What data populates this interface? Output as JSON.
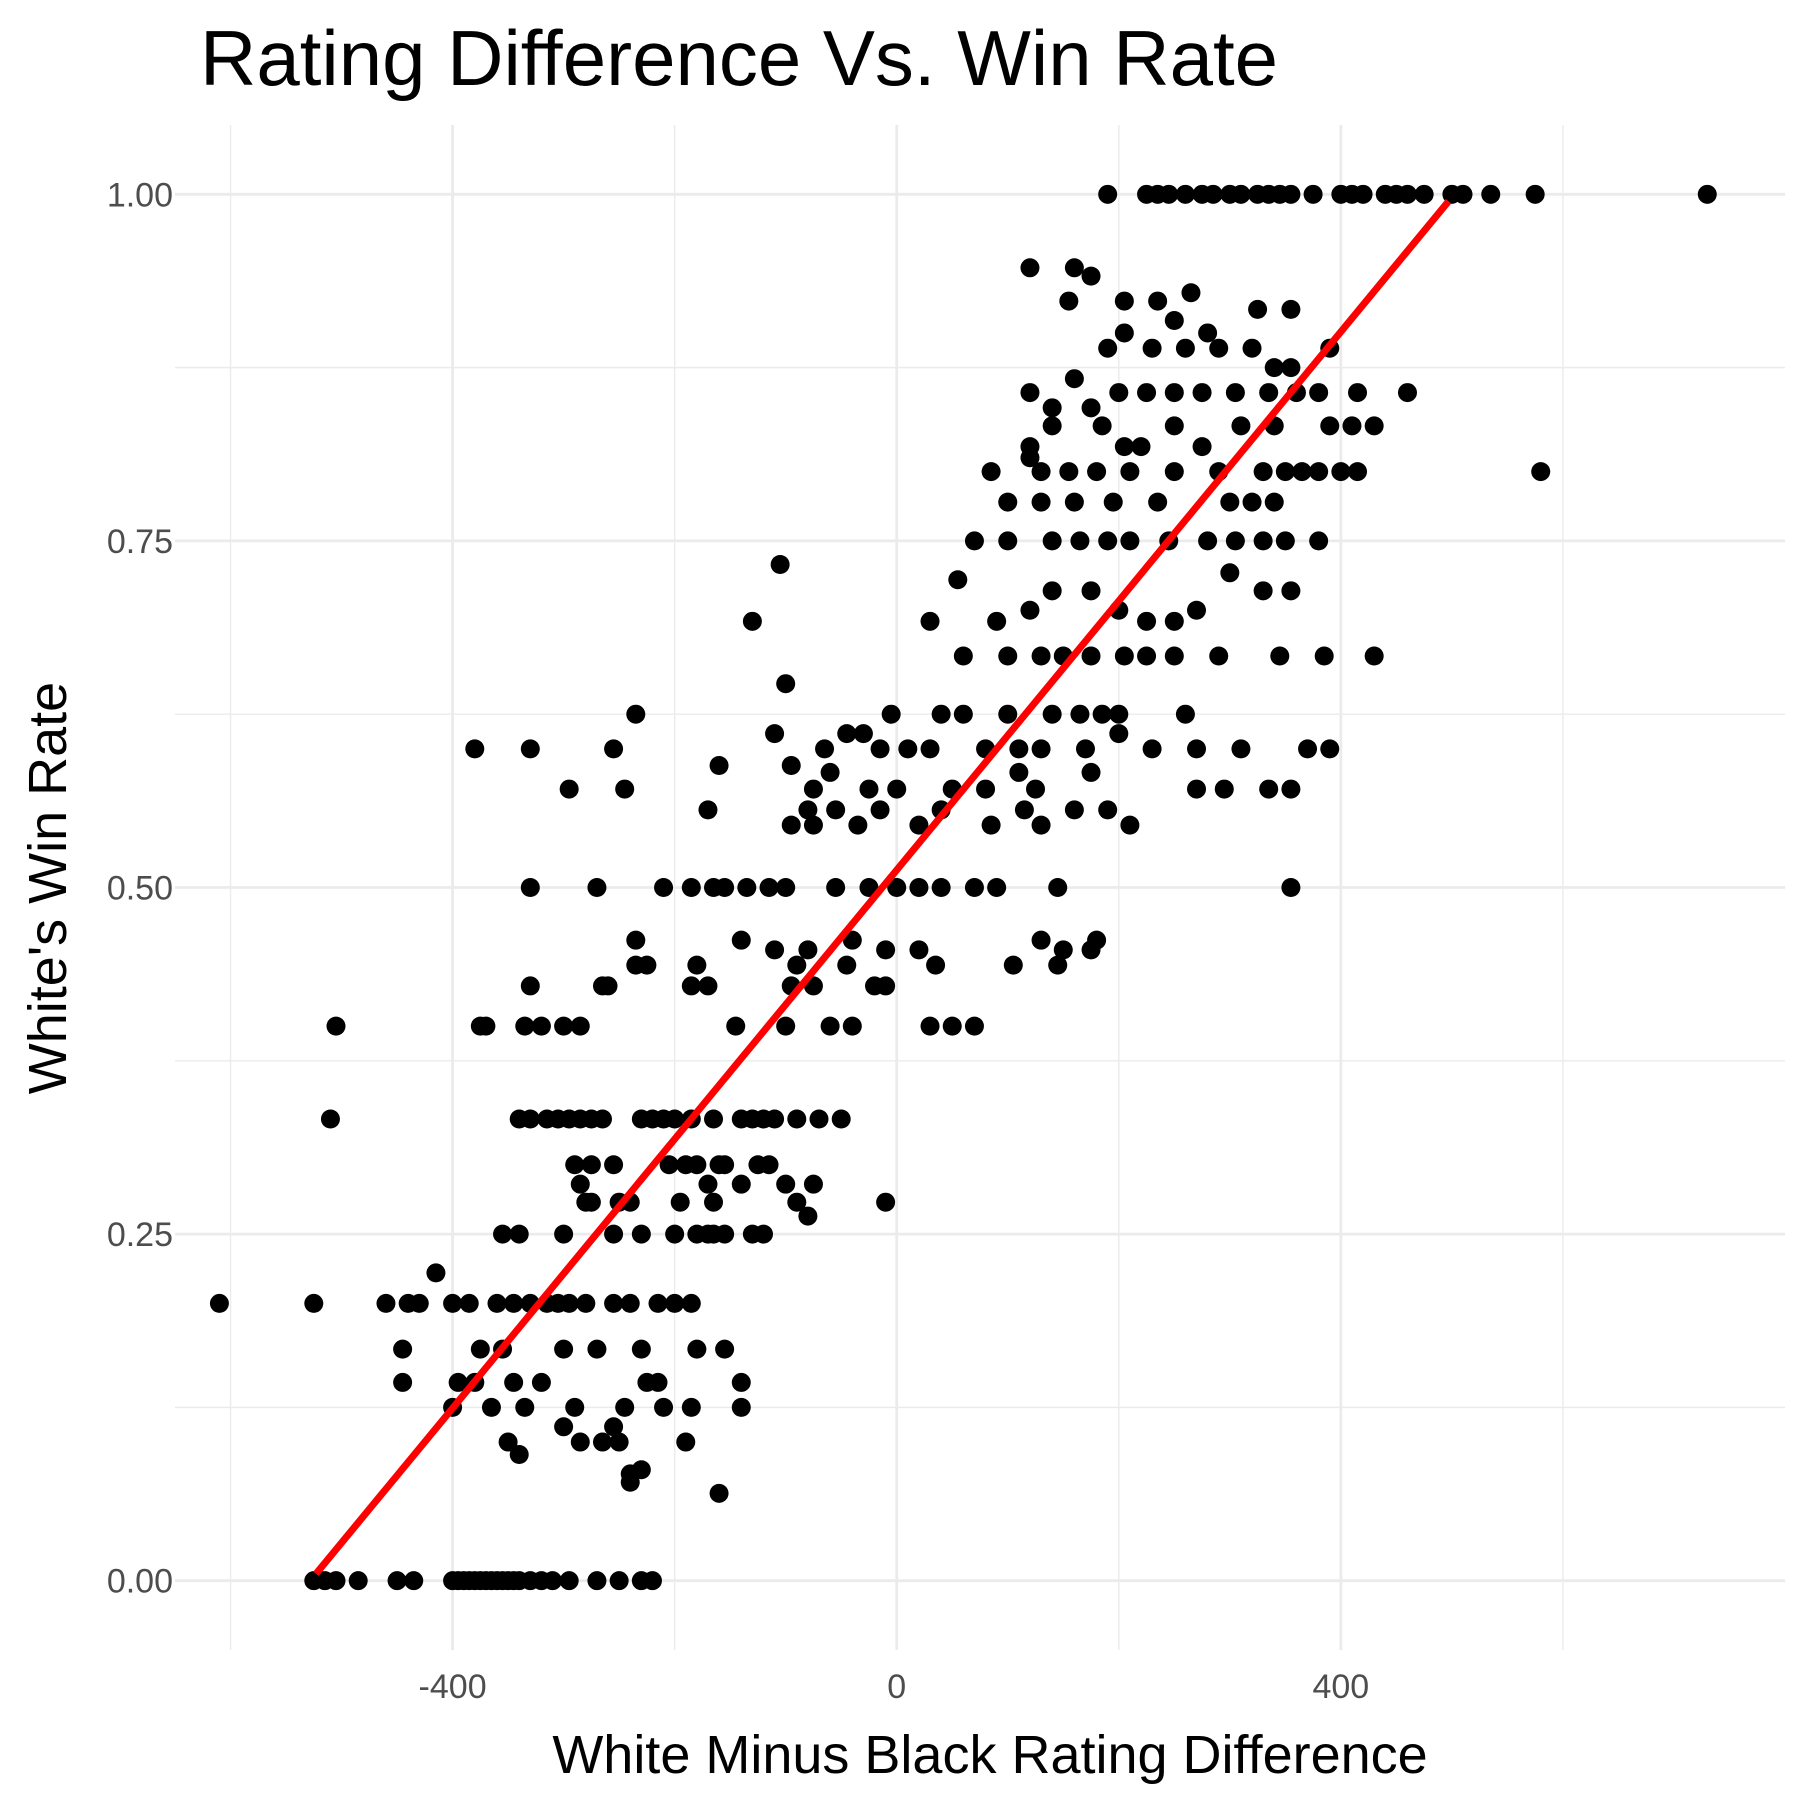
{
  "chart_data": {
    "type": "scatter",
    "title": "Rating Difference Vs. Win Rate",
    "xlabel": "White Minus Black Rating Difference",
    "ylabel": "White's Win Rate",
    "xlim": [
      -650,
      800
    ],
    "ylim": [
      -0.05,
      1.05
    ],
    "x_ticks": [
      -400,
      0,
      400
    ],
    "x_tick_labels": [
      "-400",
      "0",
      "400"
    ],
    "x_minor_ticks": [
      -600,
      -200,
      200,
      600
    ],
    "y_ticks": [
      0,
      0.25,
      0.5,
      0.75,
      1
    ],
    "y_tick_labels": [
      "0.00",
      "0.25",
      "0.50",
      "0.75",
      "1.00"
    ],
    "y_minor_ticks": [
      0.125,
      0.375,
      0.625,
      0.875
    ],
    "grid": true,
    "point_color": "#000000",
    "fit_line": {
      "color": "#ff0000",
      "x": [
        -523,
        497
      ],
      "y": [
        0.005,
        0.995
      ]
    },
    "points": [
      [
        -610,
        0.2
      ],
      [
        -525,
        0.2
      ],
      [
        -505,
        0.4
      ],
      [
        -510,
        0.333
      ],
      [
        -525,
        0
      ],
      [
        -515,
        0
      ],
      [
        -505,
        0
      ],
      [
        -485,
        0
      ],
      [
        -450,
        0
      ],
      [
        -435,
        0
      ],
      [
        -400,
        0
      ],
      [
        -395,
        0
      ],
      [
        -390,
        0
      ],
      [
        -385,
        0
      ],
      [
        -380,
        0
      ],
      [
        -375,
        0
      ],
      [
        -370,
        0
      ],
      [
        -365,
        0
      ],
      [
        -360,
        0
      ],
      [
        -355,
        0
      ],
      [
        -350,
        0
      ],
      [
        -345,
        0
      ],
      [
        -340,
        0
      ],
      [
        -330,
        0
      ],
      [
        -320,
        0
      ],
      [
        -310,
        0
      ],
      [
        -295,
        0
      ],
      [
        -270,
        0
      ],
      [
        -250,
        0
      ],
      [
        -230,
        0
      ],
      [
        -220,
        0
      ],
      [
        -460,
        0.2
      ],
      [
        -440,
        0.2
      ],
      [
        -430,
        0.2
      ],
      [
        -415,
        0.222
      ],
      [
        -400,
        0.2
      ],
      [
        -385,
        0.2
      ],
      [
        -360,
        0.2
      ],
      [
        -345,
        0.2
      ],
      [
        -330,
        0.2
      ],
      [
        -315,
        0.2
      ],
      [
        -305,
        0.2
      ],
      [
        -295,
        0.2
      ],
      [
        -280,
        0.2
      ],
      [
        -255,
        0.2
      ],
      [
        -240,
        0.2
      ],
      [
        -215,
        0.2
      ],
      [
        -200,
        0.2
      ],
      [
        -185,
        0.2
      ],
      [
        -445,
        0.167
      ],
      [
        -375,
        0.167
      ],
      [
        -355,
        0.167
      ],
      [
        -300,
        0.167
      ],
      [
        -270,
        0.167
      ],
      [
        -230,
        0.167
      ],
      [
        -180,
        0.167
      ],
      [
        -155,
        0.167
      ],
      [
        -445,
        0.143
      ],
      [
        -395,
        0.143
      ],
      [
        -380,
        0.143
      ],
      [
        -345,
        0.143
      ],
      [
        -320,
        0.143
      ],
      [
        -225,
        0.143
      ],
      [
        -215,
        0.143
      ],
      [
        -140,
        0.143
      ],
      [
        -400,
        0.125
      ],
      [
        -365,
        0.125
      ],
      [
        -335,
        0.125
      ],
      [
        -290,
        0.125
      ],
      [
        -245,
        0.125
      ],
      [
        -210,
        0.125
      ],
      [
        -185,
        0.125
      ],
      [
        -140,
        0.125
      ],
      [
        -350,
        0.1
      ],
      [
        -340,
        0.091
      ],
      [
        -300,
        0.111
      ],
      [
        -285,
        0.1
      ],
      [
        -265,
        0.1
      ],
      [
        -255,
        0.111
      ],
      [
        -250,
        0.1
      ],
      [
        -190,
        0.1
      ],
      [
        -240,
        0.077
      ],
      [
        -240,
        0.071
      ],
      [
        -230,
        0.08
      ],
      [
        -160,
        0.063
      ],
      [
        -355,
        0.25
      ],
      [
        -340,
        0.25
      ],
      [
        -300,
        0.25
      ],
      [
        -255,
        0.25
      ],
      [
        -230,
        0.25
      ],
      [
        -200,
        0.25
      ],
      [
        -180,
        0.25
      ],
      [
        -170,
        0.25
      ],
      [
        -165,
        0.25
      ],
      [
        -155,
        0.25
      ],
      [
        -130,
        0.25
      ],
      [
        -120,
        0.25
      ],
      [
        -285,
        0.286
      ],
      [
        -280,
        0.273
      ],
      [
        -275,
        0.273
      ],
      [
        -250,
        0.273
      ],
      [
        -240,
        0.273
      ],
      [
        -195,
        0.273
      ],
      [
        -170,
        0.286
      ],
      [
        -165,
        0.273
      ],
      [
        -140,
        0.286
      ],
      [
        -100,
        0.286
      ],
      [
        -75,
        0.286
      ],
      [
        -90,
        0.273
      ],
      [
        -80,
        0.263
      ],
      [
        -10,
        0.273
      ],
      [
        -290,
        0.3
      ],
      [
        -275,
        0.3
      ],
      [
        -255,
        0.3
      ],
      [
        -205,
        0.3
      ],
      [
        -190,
        0.3
      ],
      [
        -180,
        0.3
      ],
      [
        -160,
        0.3
      ],
      [
        -155,
        0.3
      ],
      [
        -125,
        0.3
      ],
      [
        -115,
        0.3
      ],
      [
        -340,
        0.333
      ],
      [
        -330,
        0.333
      ],
      [
        -315,
        0.333
      ],
      [
        -305,
        0.333
      ],
      [
        -295,
        0.333
      ],
      [
        -285,
        0.333
      ],
      [
        -275,
        0.333
      ],
      [
        -265,
        0.333
      ],
      [
        -230,
        0.333
      ],
      [
        -220,
        0.333
      ],
      [
        -210,
        0.333
      ],
      [
        -200,
        0.333
      ],
      [
        -185,
        0.333
      ],
      [
        -165,
        0.333
      ],
      [
        -140,
        0.333
      ],
      [
        -130,
        0.333
      ],
      [
        -120,
        0.333
      ],
      [
        -110,
        0.333
      ],
      [
        -90,
        0.333
      ],
      [
        -70,
        0.333
      ],
      [
        -50,
        0.333
      ],
      [
        -375,
        0.4
      ],
      [
        -370,
        0.4
      ],
      [
        -335,
        0.4
      ],
      [
        -320,
        0.4
      ],
      [
        -300,
        0.4
      ],
      [
        -285,
        0.4
      ],
      [
        -145,
        0.4
      ],
      [
        -100,
        0.4
      ],
      [
        -60,
        0.4
      ],
      [
        -40,
        0.4
      ],
      [
        30,
        0.4
      ],
      [
        50,
        0.4
      ],
      [
        70,
        0.4
      ],
      [
        -330,
        0.429
      ],
      [
        -265,
        0.429
      ],
      [
        -260,
        0.429
      ],
      [
        -185,
        0.429
      ],
      [
        -170,
        0.429
      ],
      [
        -95,
        0.429
      ],
      [
        -75,
        0.429
      ],
      [
        -20,
        0.429
      ],
      [
        -10,
        0.429
      ],
      [
        -235,
        0.444
      ],
      [
        -225,
        0.444
      ],
      [
        -180,
        0.444
      ],
      [
        -90,
        0.444
      ],
      [
        -45,
        0.444
      ],
      [
        35,
        0.444
      ],
      [
        105,
        0.444
      ],
      [
        145,
        0.444
      ],
      [
        -235,
        0.462
      ],
      [
        -140,
        0.462
      ],
      [
        -110,
        0.455
      ],
      [
        -80,
        0.455
      ],
      [
        -40,
        0.462
      ],
      [
        -10,
        0.455
      ],
      [
        20,
        0.455
      ],
      [
        130,
        0.462
      ],
      [
        150,
        0.455
      ],
      [
        175,
        0.455
      ],
      [
        180,
        0.462
      ],
      [
        -330,
        0.5
      ],
      [
        -270,
        0.5
      ],
      [
        -210,
        0.5
      ],
      [
        -185,
        0.5
      ],
      [
        -165,
        0.5
      ],
      [
        -155,
        0.5
      ],
      [
        -135,
        0.5
      ],
      [
        -115,
        0.5
      ],
      [
        -100,
        0.5
      ],
      [
        -55,
        0.5
      ],
      [
        -25,
        0.5
      ],
      [
        0,
        0.5
      ],
      [
        20,
        0.5
      ],
      [
        40,
        0.5
      ],
      [
        70,
        0.5
      ],
      [
        90,
        0.5
      ],
      [
        145,
        0.5
      ],
      [
        355,
        0.5
      ],
      [
        -95,
        0.545
      ],
      [
        -80,
        0.556
      ],
      [
        -75,
        0.545
      ],
      [
        -55,
        0.556
      ],
      [
        -35,
        0.545
      ],
      [
        -15,
        0.556
      ],
      [
        20,
        0.545
      ],
      [
        40,
        0.556
      ],
      [
        85,
        0.545
      ],
      [
        115,
        0.556
      ],
      [
        130,
        0.545
      ],
      [
        160,
        0.556
      ],
      [
        190,
        0.556
      ],
      [
        210,
        0.545
      ],
      [
        -295,
        0.571
      ],
      [
        -245,
        0.571
      ],
      [
        -170,
        0.556
      ],
      [
        -95,
        0.588
      ],
      [
        -75,
        0.571
      ],
      [
        -60,
        0.583
      ],
      [
        -25,
        0.571
      ],
      [
        0,
        0.571
      ],
      [
        50,
        0.571
      ],
      [
        80,
        0.571
      ],
      [
        110,
        0.583
      ],
      [
        125,
        0.571
      ],
      [
        175,
        0.583
      ],
      [
        270,
        0.571
      ],
      [
        295,
        0.571
      ],
      [
        335,
        0.571
      ],
      [
        355,
        0.571
      ],
      [
        -380,
        0.6
      ],
      [
        -330,
        0.6
      ],
      [
        -255,
        0.6
      ],
      [
        -160,
        0.588
      ],
      [
        -65,
        0.6
      ],
      [
        -45,
        0.611
      ],
      [
        -30,
        0.611
      ],
      [
        -15,
        0.6
      ],
      [
        10,
        0.6
      ],
      [
        30,
        0.6
      ],
      [
        80,
        0.6
      ],
      [
        110,
        0.6
      ],
      [
        130,
        0.6
      ],
      [
        170,
        0.6
      ],
      [
        200,
        0.611
      ],
      [
        230,
        0.6
      ],
      [
        270,
        0.6
      ],
      [
        310,
        0.6
      ],
      [
        370,
        0.6
      ],
      [
        390,
        0.6
      ],
      [
        -235,
        0.625
      ],
      [
        -110,
        0.611
      ],
      [
        -5,
        0.625
      ],
      [
        40,
        0.625
      ],
      [
        60,
        0.625
      ],
      [
        100,
        0.625
      ],
      [
        140,
        0.625
      ],
      [
        165,
        0.625
      ],
      [
        185,
        0.625
      ],
      [
        200,
        0.625
      ],
      [
        260,
        0.625
      ],
      [
        -130,
        0.692
      ],
      [
        -105,
        0.733
      ],
      [
        -100,
        0.647
      ],
      [
        30,
        0.692
      ],
      [
        60,
        0.667
      ],
      [
        100,
        0.667
      ],
      [
        130,
        0.667
      ],
      [
        150,
        0.667
      ],
      [
        175,
        0.667
      ],
      [
        205,
        0.667
      ],
      [
        225,
        0.667
      ],
      [
        250,
        0.667
      ],
      [
        290,
        0.667
      ],
      [
        345,
        0.667
      ],
      [
        385,
        0.667
      ],
      [
        430,
        0.667
      ],
      [
        55,
        0.722
      ],
      [
        90,
        0.692
      ],
      [
        120,
        0.7
      ],
      [
        140,
        0.714
      ],
      [
        175,
        0.714
      ],
      [
        200,
        0.7
      ],
      [
        225,
        0.692
      ],
      [
        250,
        0.692
      ],
      [
        270,
        0.7
      ],
      [
        300,
        0.727
      ],
      [
        330,
        0.714
      ],
      [
        355,
        0.714
      ],
      [
        70,
        0.75
      ],
      [
        100,
        0.75
      ],
      [
        140,
        0.75
      ],
      [
        165,
        0.75
      ],
      [
        190,
        0.75
      ],
      [
        210,
        0.75
      ],
      [
        245,
        0.75
      ],
      [
        280,
        0.75
      ],
      [
        305,
        0.75
      ],
      [
        330,
        0.75
      ],
      [
        350,
        0.75
      ],
      [
        380,
        0.75
      ],
      [
        100,
        0.778
      ],
      [
        130,
        0.778
      ],
      [
        160,
        0.778
      ],
      [
        195,
        0.778
      ],
      [
        235,
        0.778
      ],
      [
        300,
        0.778
      ],
      [
        320,
        0.778
      ],
      [
        340,
        0.778
      ],
      [
        85,
        0.8
      ],
      [
        120,
        0.81
      ],
      [
        130,
        0.8
      ],
      [
        155,
        0.8
      ],
      [
        180,
        0.8
      ],
      [
        210,
        0.8
      ],
      [
        250,
        0.8
      ],
      [
        290,
        0.8
      ],
      [
        330,
        0.8
      ],
      [
        350,
        0.8
      ],
      [
        365,
        0.8
      ],
      [
        380,
        0.8
      ],
      [
        400,
        0.8
      ],
      [
        415,
        0.8
      ],
      [
        580,
        0.8
      ],
      [
        120,
        0.818
      ],
      [
        140,
        0.833
      ],
      [
        185,
        0.833
      ],
      [
        205,
        0.818
      ],
      [
        220,
        0.818
      ],
      [
        250,
        0.833
      ],
      [
        275,
        0.818
      ],
      [
        310,
        0.833
      ],
      [
        340,
        0.833
      ],
      [
        390,
        0.833
      ],
      [
        410,
        0.833
      ],
      [
        430,
        0.833
      ],
      [
        120,
        0.857
      ],
      [
        140,
        0.846
      ],
      [
        160,
        0.867
      ],
      [
        175,
        0.846
      ],
      [
        200,
        0.857
      ],
      [
        225,
        0.857
      ],
      [
        250,
        0.857
      ],
      [
        275,
        0.857
      ],
      [
        305,
        0.857
      ],
      [
        335,
        0.857
      ],
      [
        360,
        0.857
      ],
      [
        380,
        0.857
      ],
      [
        415,
        0.857
      ],
      [
        460,
        0.857
      ],
      [
        190,
        0.889
      ],
      [
        205,
        0.9
      ],
      [
        230,
        0.889
      ],
      [
        260,
        0.889
      ],
      [
        280,
        0.9
      ],
      [
        290,
        0.889
      ],
      [
        320,
        0.889
      ],
      [
        340,
        0.875
      ],
      [
        355,
        0.875
      ],
      [
        390,
        0.889
      ],
      [
        120,
        0.947
      ],
      [
        155,
        0.923
      ],
      [
        160,
        0.947
      ],
      [
        175,
        0.941
      ],
      [
        205,
        0.923
      ],
      [
        235,
        0.923
      ],
      [
        250,
        0.909
      ],
      [
        265,
        0.929
      ],
      [
        325,
        0.917
      ],
      [
        355,
        0.917
      ],
      [
        190,
        1
      ],
      [
        225,
        1
      ],
      [
        235,
        1
      ],
      [
        245,
        1
      ],
      [
        260,
        1
      ],
      [
        275,
        1
      ],
      [
        285,
        1
      ],
      [
        300,
        1
      ],
      [
        310,
        1
      ],
      [
        325,
        1
      ],
      [
        335,
        1
      ],
      [
        345,
        1
      ],
      [
        355,
        1
      ],
      [
        375,
        1
      ],
      [
        400,
        1
      ],
      [
        410,
        1
      ],
      [
        420,
        1
      ],
      [
        440,
        1
      ],
      [
        450,
        1
      ],
      [
        460,
        1
      ],
      [
        475,
        1
      ],
      [
        500,
        1
      ],
      [
        510,
        1
      ],
      [
        535,
        1
      ],
      [
        575,
        1
      ],
      [
        730,
        1
      ]
    ]
  }
}
